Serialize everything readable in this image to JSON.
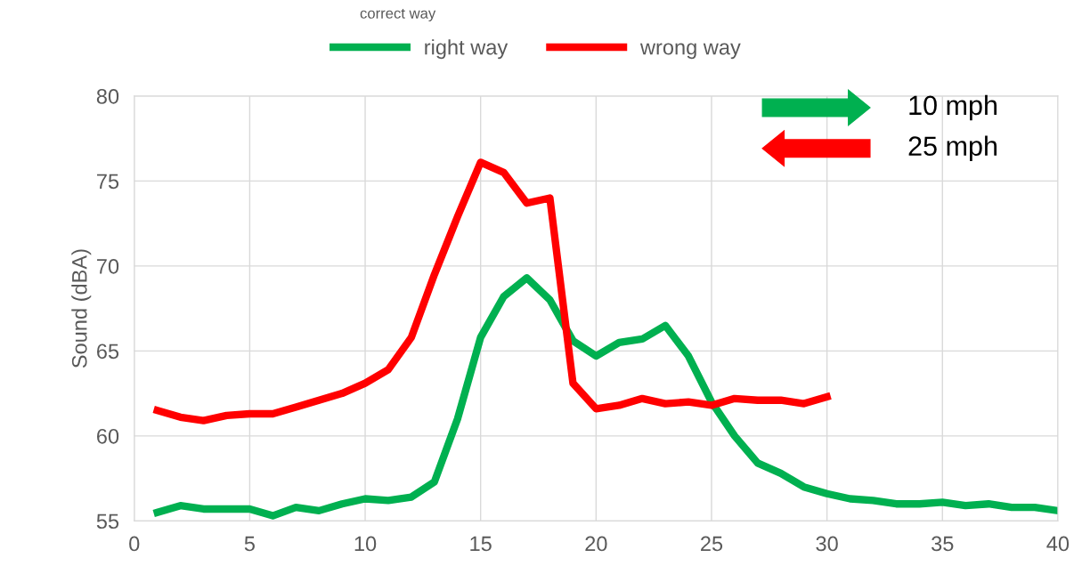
{
  "chart_data": {
    "type": "line",
    "ylabel": "Sound (dBA)",
    "x": [
      1,
      2,
      3,
      4,
      5,
      6,
      7,
      8,
      9,
      10,
      11,
      12,
      13,
      14,
      15,
      16,
      17,
      18,
      19,
      20,
      21,
      22,
      23,
      24,
      25,
      26,
      27,
      28,
      29,
      30,
      31,
      32,
      33,
      34,
      35,
      36,
      37,
      38,
      39,
      40
    ],
    "series": [
      {
        "name": "right way",
        "color": "#00b050",
        "values": [
          55.5,
          55.9,
          55.7,
          55.7,
          55.7,
          55.3,
          55.8,
          55.6,
          56.0,
          56.3,
          56.2,
          56.4,
          57.3,
          61.0,
          65.8,
          68.2,
          69.3,
          68.0,
          65.6,
          64.7,
          65.5,
          65.7,
          66.5,
          64.7,
          62.0,
          60.0,
          58.4,
          57.8,
          57.0,
          56.6,
          56.3,
          56.2,
          56.0,
          56.0,
          56.1,
          55.9,
          56.0,
          55.8,
          55.8,
          55.6
        ]
      },
      {
        "name": "wrong way",
        "color": "#ff0000",
        "values": [
          61.5,
          61.1,
          60.9,
          61.2,
          61.3,
          61.3,
          61.7,
          62.1,
          62.5,
          63.1,
          63.9,
          65.8,
          69.5,
          72.9,
          76.1,
          75.5,
          73.7,
          74.0,
          63.1,
          61.6,
          61.8,
          62.2,
          61.9,
          62.0,
          61.8,
          62.2,
          62.1,
          62.1,
          61.9,
          62.3,
          null,
          null,
          null,
          null,
          null,
          null,
          null,
          null,
          null,
          null
        ]
      }
    ],
    "xlim": [
      0,
      40
    ],
    "xticks": [
      0,
      5,
      10,
      15,
      20,
      25,
      30,
      35,
      40
    ],
    "ylim": [
      55,
      80
    ],
    "yticks": [
      55,
      60,
      65,
      70,
      75,
      80
    ],
    "grid": true,
    "legend": "top",
    "marker": "none",
    "line_style": "solid",
    "annotations": [
      "correct way",
      "10 mph",
      "25 mph"
    ]
  }
}
